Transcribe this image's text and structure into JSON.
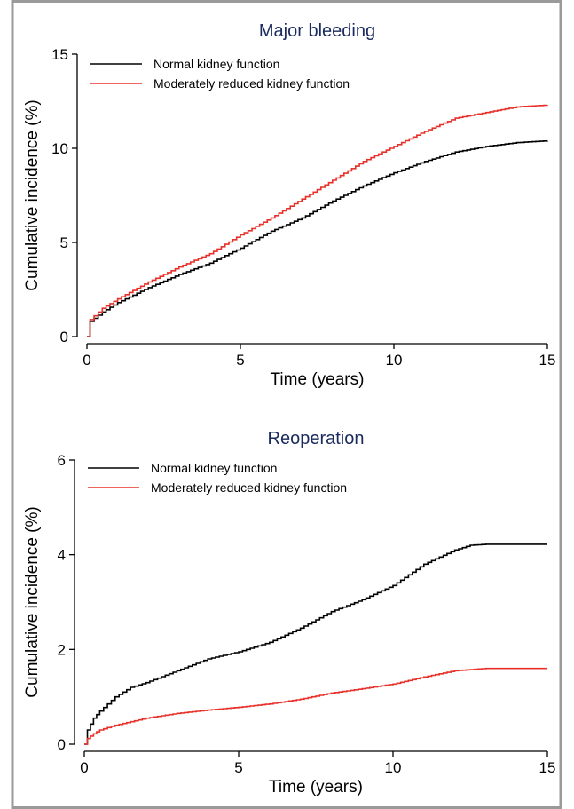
{
  "chart_data": [
    {
      "type": "line",
      "title": "Major bleeding",
      "xlabel": "Time (years)",
      "ylabel": "Cumulative incidence (%)",
      "xlim": [
        0,
        15
      ],
      "ylim": [
        0,
        15
      ],
      "xticks": [
        0,
        5,
        10,
        15
      ],
      "yticks": [
        0,
        5,
        10,
        15
      ],
      "legend_position": "top-left",
      "grid": false,
      "series": [
        {
          "name": "Normal kidney function",
          "color": "#000000",
          "points": [
            [
              0,
              0
            ],
            [
              0.1,
              0.8
            ],
            [
              0.5,
              1.3
            ],
            [
              1,
              1.8
            ],
            [
              2,
              2.6
            ],
            [
              3,
              3.3
            ],
            [
              4,
              3.9
            ],
            [
              5,
              4.7
            ],
            [
              6,
              5.6
            ],
            [
              7,
              6.3
            ],
            [
              8,
              7.2
            ],
            [
              9,
              8.0
            ],
            [
              10,
              8.7
            ],
            [
              11,
              9.3
            ],
            [
              12,
              9.8
            ],
            [
              13,
              10.1
            ],
            [
              14,
              10.3
            ],
            [
              15,
              10.4
            ]
          ]
        },
        {
          "name": "Moderately reduced kidney function",
          "color": "#e8302a",
          "points": [
            [
              0,
              0
            ],
            [
              0.1,
              0.9
            ],
            [
              0.5,
              1.5
            ],
            [
              1,
              2.0
            ],
            [
              2,
              2.9
            ],
            [
              3,
              3.7
            ],
            [
              4,
              4.4
            ],
            [
              5,
              5.4
            ],
            [
              6,
              6.3
            ],
            [
              7,
              7.3
            ],
            [
              8,
              8.3
            ],
            [
              9,
              9.3
            ],
            [
              10,
              10.1
            ],
            [
              11,
              10.9
            ],
            [
              12,
              11.6
            ],
            [
              13,
              11.9
            ],
            [
              14,
              12.2
            ],
            [
              15,
              12.3
            ]
          ]
        }
      ]
    },
    {
      "type": "line",
      "title": "Reoperation",
      "xlabel": "Time (years)",
      "ylabel": "Cumulative incidence (%)",
      "xlim": [
        0,
        15
      ],
      "ylim": [
        0,
        6
      ],
      "xticks": [
        0,
        5,
        10,
        15
      ],
      "yticks": [
        0,
        2,
        4,
        6
      ],
      "legend_position": "top-left",
      "grid": false,
      "series": [
        {
          "name": "Normal kidney function",
          "color": "#000000",
          "points": [
            [
              0,
              0
            ],
            [
              0.1,
              0.3
            ],
            [
              0.3,
              0.55
            ],
            [
              0.5,
              0.7
            ],
            [
              1,
              1.0
            ],
            [
              1.5,
              1.2
            ],
            [
              2,
              1.3
            ],
            [
              3,
              1.55
            ],
            [
              4,
              1.8
            ],
            [
              5,
              1.95
            ],
            [
              6,
              2.15
            ],
            [
              7,
              2.45
            ],
            [
              8,
              2.8
            ],
            [
              9,
              3.05
            ],
            [
              10,
              3.35
            ],
            [
              11,
              3.8
            ],
            [
              12,
              4.1
            ],
            [
              12.5,
              4.2
            ],
            [
              13,
              4.22
            ],
            [
              15,
              4.22
            ]
          ]
        },
        {
          "name": "Moderately reduced kidney function",
          "color": "#e8302a",
          "points": [
            [
              0,
              0
            ],
            [
              0.1,
              0.12
            ],
            [
              0.3,
              0.22
            ],
            [
              0.5,
              0.3
            ],
            [
              1,
              0.4
            ],
            [
              2,
              0.55
            ],
            [
              3,
              0.65
            ],
            [
              4,
              0.72
            ],
            [
              5,
              0.78
            ],
            [
              6,
              0.85
            ],
            [
              7,
              0.95
            ],
            [
              8,
              1.08
            ],
            [
              9,
              1.17
            ],
            [
              10,
              1.27
            ],
            [
              11,
              1.42
            ],
            [
              12,
              1.55
            ],
            [
              13,
              1.6
            ],
            [
              15,
              1.6
            ]
          ]
        }
      ]
    }
  ]
}
